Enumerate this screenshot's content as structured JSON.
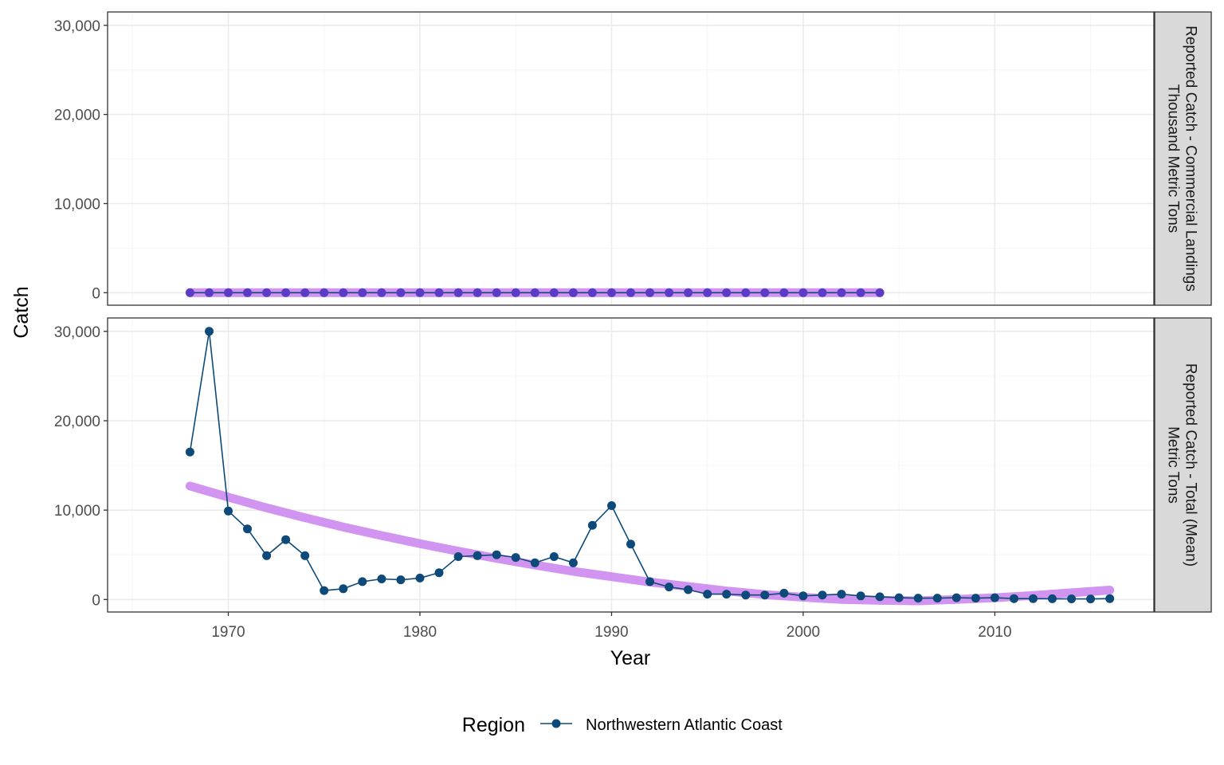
{
  "chart_data": {
    "type": "line",
    "xlabel": "Year",
    "ylabel": "Catch",
    "xlim": [
      1963.7,
      2018.3
    ],
    "ylim": [
      -1400,
      31500
    ],
    "x_ticks": [
      1970,
      1980,
      1990,
      2000,
      2010
    ],
    "x_tick_labels": [
      "1970",
      "1980",
      "1990",
      "2000",
      "2010"
    ],
    "y_ticks": [
      0,
      10000,
      20000,
      30000
    ],
    "y_tick_labels": [
      "0",
      "10,000",
      "20,000",
      "30,000"
    ],
    "grid": true,
    "legend": {
      "title": "Region",
      "position": "bottom",
      "entries": [
        "Northwestern Atlantic Coast"
      ]
    },
    "colors": {
      "series": "#0d4a7a",
      "trend": "#cc88ee",
      "point_overlay": "#5b3cc4",
      "strip_bg": "#d9d9d9",
      "grid_major": "#ebebeb",
      "grid_minor": "#f5f5f5"
    },
    "panels": [
      {
        "strip_label_lines": [
          "Reported Catch - Commercial Landings",
          "Thousand Metric Tons"
        ],
        "series": [
          {
            "name": "Northwestern Atlantic Coast",
            "x": [
              1968,
              1969,
              1970,
              1971,
              1972,
              1973,
              1974,
              1975,
              1976,
              1977,
              1978,
              1979,
              1980,
              1981,
              1982,
              1983,
              1984,
              1985,
              1986,
              1987,
              1988,
              1989,
              1990,
              1991,
              1992,
              1993,
              1994,
              1995,
              1996,
              1997,
              1998,
              1999,
              2000,
              2001,
              2002,
              2003,
              2004
            ],
            "y": [
              0,
              0,
              0,
              0,
              0,
              0,
              0,
              0,
              0,
              0,
              0,
              0,
              0,
              0,
              0,
              0,
              0,
              0,
              0,
              0,
              0,
              0,
              0,
              0,
              0,
              0,
              0,
              0,
              0,
              0,
              0,
              0,
              0,
              0,
              0,
              0,
              0
            ]
          }
        ],
        "trend": {
          "x": [
            1968,
            2004
          ],
          "y": [
            0,
            0
          ]
        }
      },
      {
        "strip_label_lines": [
          "Reported Catch - Total (Mean)",
          "Metric Tons"
        ],
        "series": [
          {
            "name": "Northwestern Atlantic Coast",
            "x": [
              1968,
              1969,
              1970,
              1971,
              1972,
              1973,
              1974,
              1975,
              1976,
              1977,
              1978,
              1979,
              1980,
              1981,
              1982,
              1983,
              1984,
              1985,
              1986,
              1987,
              1988,
              1989,
              1990,
              1991,
              1992,
              1993,
              1994,
              1995,
              1996,
              1997,
              1998,
              1999,
              2000,
              2001,
              2002,
              2003,
              2004,
              2005,
              2006,
              2007,
              2008,
              2009,
              2010,
              2011,
              2012,
              2013,
              2014,
              2015,
              2016
            ],
            "y": [
              16500,
              30000,
              9900,
              7900,
              4900,
              6700,
              4900,
              1000,
              1200,
              2000,
              2300,
              2200,
              2400,
              3000,
              4800,
              4900,
              5000,
              4700,
              4100,
              4800,
              4100,
              8300,
              10500,
              6200,
              2000,
              1400,
              1100,
              600,
              600,
              500,
              500,
              700,
              400,
              500,
              600,
              400,
              300,
              200,
              150,
              150,
              200,
              150,
              200,
              100,
              100,
              80,
              70,
              60,
              100
            ]
          }
        ],
        "trend": {
          "x": [
            1968,
            1970,
            1972,
            1974,
            1976,
            1978,
            1980,
            1982,
            1984,
            1986,
            1988,
            1990,
            1992,
            1994,
            1996,
            1998,
            2000,
            2002,
            2004,
            2006,
            2008,
            2010,
            2012,
            2014,
            2016
          ],
          "y": [
            12700,
            11450,
            10250,
            9150,
            8100,
            7150,
            6250,
            5400,
            4600,
            3850,
            3150,
            2550,
            1950,
            1450,
            950,
            550,
            250,
            0,
            -100,
            -150,
            0,
            200,
            450,
            750,
            1050
          ]
        }
      }
    ]
  }
}
